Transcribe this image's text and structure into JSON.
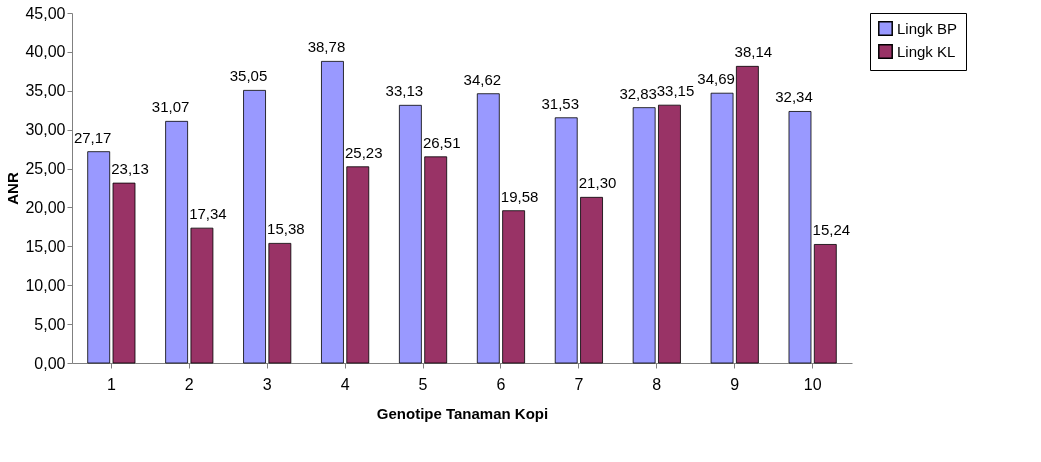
{
  "chart_data": {
    "type": "bar",
    "xlabel": "Genotipe Tanaman Kopi",
    "ylabel": "ANR",
    "categories": [
      "1",
      "2",
      "3",
      "4",
      "5",
      "6",
      "7",
      "8",
      "9",
      "10"
    ],
    "series": [
      {
        "name": "Lingk BP",
        "color": "#9999ff",
        "values": [
          27.17,
          31.07,
          35.05,
          38.78,
          33.13,
          34.62,
          31.53,
          32.83,
          34.69,
          32.34
        ],
        "value_labels": [
          "27,17",
          "31,07",
          "35,05",
          "38,78",
          "33,13",
          "34,62",
          "31,53",
          "32,83",
          "34,69",
          "32,34"
        ]
      },
      {
        "name": "Lingk KL",
        "color": "#993366",
        "values": [
          23.13,
          17.34,
          15.38,
          25.23,
          26.51,
          19.58,
          21.3,
          33.15,
          38.14,
          15.24
        ],
        "value_labels": [
          "23,13",
          "17,34",
          "15,38",
          "25,23",
          "26,51",
          "19,58",
          "21,30",
          "33,15",
          "38,14",
          "15,24"
        ]
      }
    ],
    "ylim": [
      0,
      45
    ],
    "yticks": [
      {
        "value": 0,
        "label": "0,00"
      },
      {
        "value": 5,
        "label": "5,00"
      },
      {
        "value": 10,
        "label": "10,00"
      },
      {
        "value": 15,
        "label": "15,00"
      },
      {
        "value": 20,
        "label": "20,00"
      },
      {
        "value": 25,
        "label": "25,00"
      },
      {
        "value": 30,
        "label": "30,00"
      },
      {
        "value": 35,
        "label": "35,00"
      },
      {
        "value": 40,
        "label": "40,00"
      },
      {
        "value": 45,
        "label": "45,00"
      }
    ],
    "grid": false,
    "legend": "right"
  }
}
